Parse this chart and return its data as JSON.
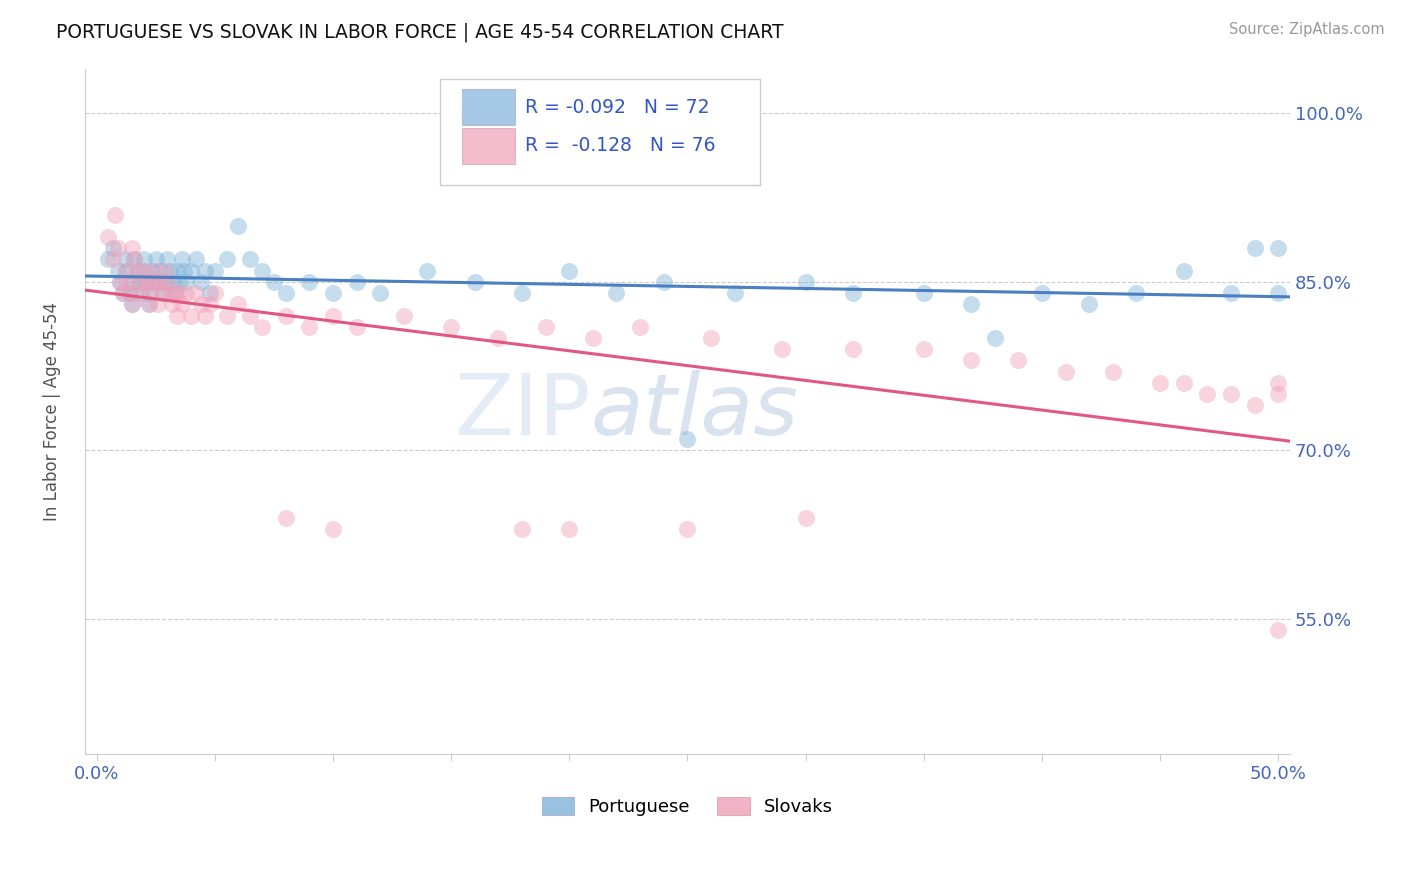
{
  "title": "PORTUGUESE VS SLOVAK IN LABOR FORCE | AGE 45-54 CORRELATION CHART",
  "source_text": "Source: ZipAtlas.com",
  "ylabel": "In Labor Force | Age 45-54",
  "xlim": [
    -0.005,
    0.505
  ],
  "ylim": [
    0.43,
    1.04
  ],
  "ytick_positions": [
    0.55,
    0.7,
    0.85,
    1.0
  ],
  "ytick_labels": [
    "55.0%",
    "70.0%",
    "85.0%",
    "100.0%"
  ],
  "blue_R": -0.092,
  "blue_N": 72,
  "pink_R": -0.128,
  "pink_N": 76,
  "blue_color": "#7fb3d9",
  "pink_color": "#f0a0b8",
  "blue_line_color": "#4a7fc0",
  "pink_line_color": "#e05880",
  "watermark_zip": "ZIP",
  "watermark_atlas": "atlas",
  "legend_blue_label": "Portuguese",
  "legend_pink_label": "Slovaks",
  "blue_x": [
    0.005,
    0.007,
    0.009,
    0.01,
    0.011,
    0.012,
    0.013,
    0.014,
    0.015,
    0.015,
    0.016,
    0.017,
    0.018,
    0.019,
    0.02,
    0.02,
    0.021,
    0.022,
    0.022,
    0.023,
    0.024,
    0.025,
    0.026,
    0.027,
    0.028,
    0.029,
    0.03,
    0.031,
    0.032,
    0.033,
    0.034,
    0.035,
    0.036,
    0.037,
    0.038,
    0.04,
    0.042,
    0.044,
    0.046,
    0.048,
    0.05,
    0.055,
    0.06,
    0.065,
    0.07,
    0.075,
    0.08,
    0.09,
    0.1,
    0.11,
    0.12,
    0.14,
    0.16,
    0.18,
    0.2,
    0.22,
    0.24,
    0.27,
    0.3,
    0.32,
    0.35,
    0.37,
    0.4,
    0.42,
    0.44,
    0.46,
    0.48,
    0.49,
    0.5,
    0.5,
    0.25,
    0.38
  ],
  "blue_y": [
    0.87,
    0.88,
    0.86,
    0.85,
    0.84,
    0.87,
    0.86,
    0.84,
    0.83,
    0.85,
    0.87,
    0.86,
    0.85,
    0.84,
    0.86,
    0.87,
    0.85,
    0.84,
    0.83,
    0.85,
    0.86,
    0.87,
    0.85,
    0.86,
    0.84,
    0.85,
    0.87,
    0.86,
    0.85,
    0.84,
    0.86,
    0.85,
    0.87,
    0.86,
    0.85,
    0.86,
    0.87,
    0.85,
    0.86,
    0.84,
    0.86,
    0.87,
    0.9,
    0.87,
    0.86,
    0.85,
    0.84,
    0.85,
    0.84,
    0.85,
    0.84,
    0.86,
    0.85,
    0.84,
    0.86,
    0.84,
    0.85,
    0.84,
    0.85,
    0.84,
    0.84,
    0.83,
    0.84,
    0.83,
    0.84,
    0.86,
    0.84,
    0.88,
    0.88,
    0.84,
    0.71,
    0.8
  ],
  "pink_x": [
    0.005,
    0.007,
    0.008,
    0.009,
    0.01,
    0.011,
    0.012,
    0.013,
    0.014,
    0.015,
    0.015,
    0.016,
    0.017,
    0.018,
    0.019,
    0.02,
    0.021,
    0.022,
    0.022,
    0.023,
    0.024,
    0.025,
    0.026,
    0.027,
    0.028,
    0.029,
    0.03,
    0.031,
    0.032,
    0.033,
    0.034,
    0.035,
    0.036,
    0.038,
    0.04,
    0.042,
    0.044,
    0.046,
    0.048,
    0.05,
    0.055,
    0.06,
    0.065,
    0.07,
    0.08,
    0.09,
    0.1,
    0.11,
    0.13,
    0.15,
    0.17,
    0.19,
    0.21,
    0.23,
    0.26,
    0.29,
    0.32,
    0.35,
    0.37,
    0.39,
    0.41,
    0.43,
    0.45,
    0.46,
    0.47,
    0.48,
    0.49,
    0.5,
    0.5,
    0.5,
    0.08,
    0.1,
    0.18,
    0.2,
    0.25,
    0.3
  ],
  "pink_y": [
    0.89,
    0.87,
    0.91,
    0.88,
    0.85,
    0.84,
    0.86,
    0.85,
    0.84,
    0.83,
    0.88,
    0.87,
    0.86,
    0.85,
    0.84,
    0.86,
    0.85,
    0.83,
    0.85,
    0.84,
    0.86,
    0.85,
    0.83,
    0.85,
    0.84,
    0.86,
    0.85,
    0.84,
    0.83,
    0.84,
    0.82,
    0.84,
    0.83,
    0.84,
    0.82,
    0.84,
    0.83,
    0.82,
    0.83,
    0.84,
    0.82,
    0.83,
    0.82,
    0.81,
    0.82,
    0.81,
    0.82,
    0.81,
    0.82,
    0.81,
    0.8,
    0.81,
    0.8,
    0.81,
    0.8,
    0.79,
    0.79,
    0.79,
    0.78,
    0.78,
    0.77,
    0.77,
    0.76,
    0.76,
    0.75,
    0.75,
    0.74,
    0.76,
    0.75,
    0.54,
    0.64,
    0.63,
    0.63,
    0.63,
    0.63,
    0.64
  ]
}
